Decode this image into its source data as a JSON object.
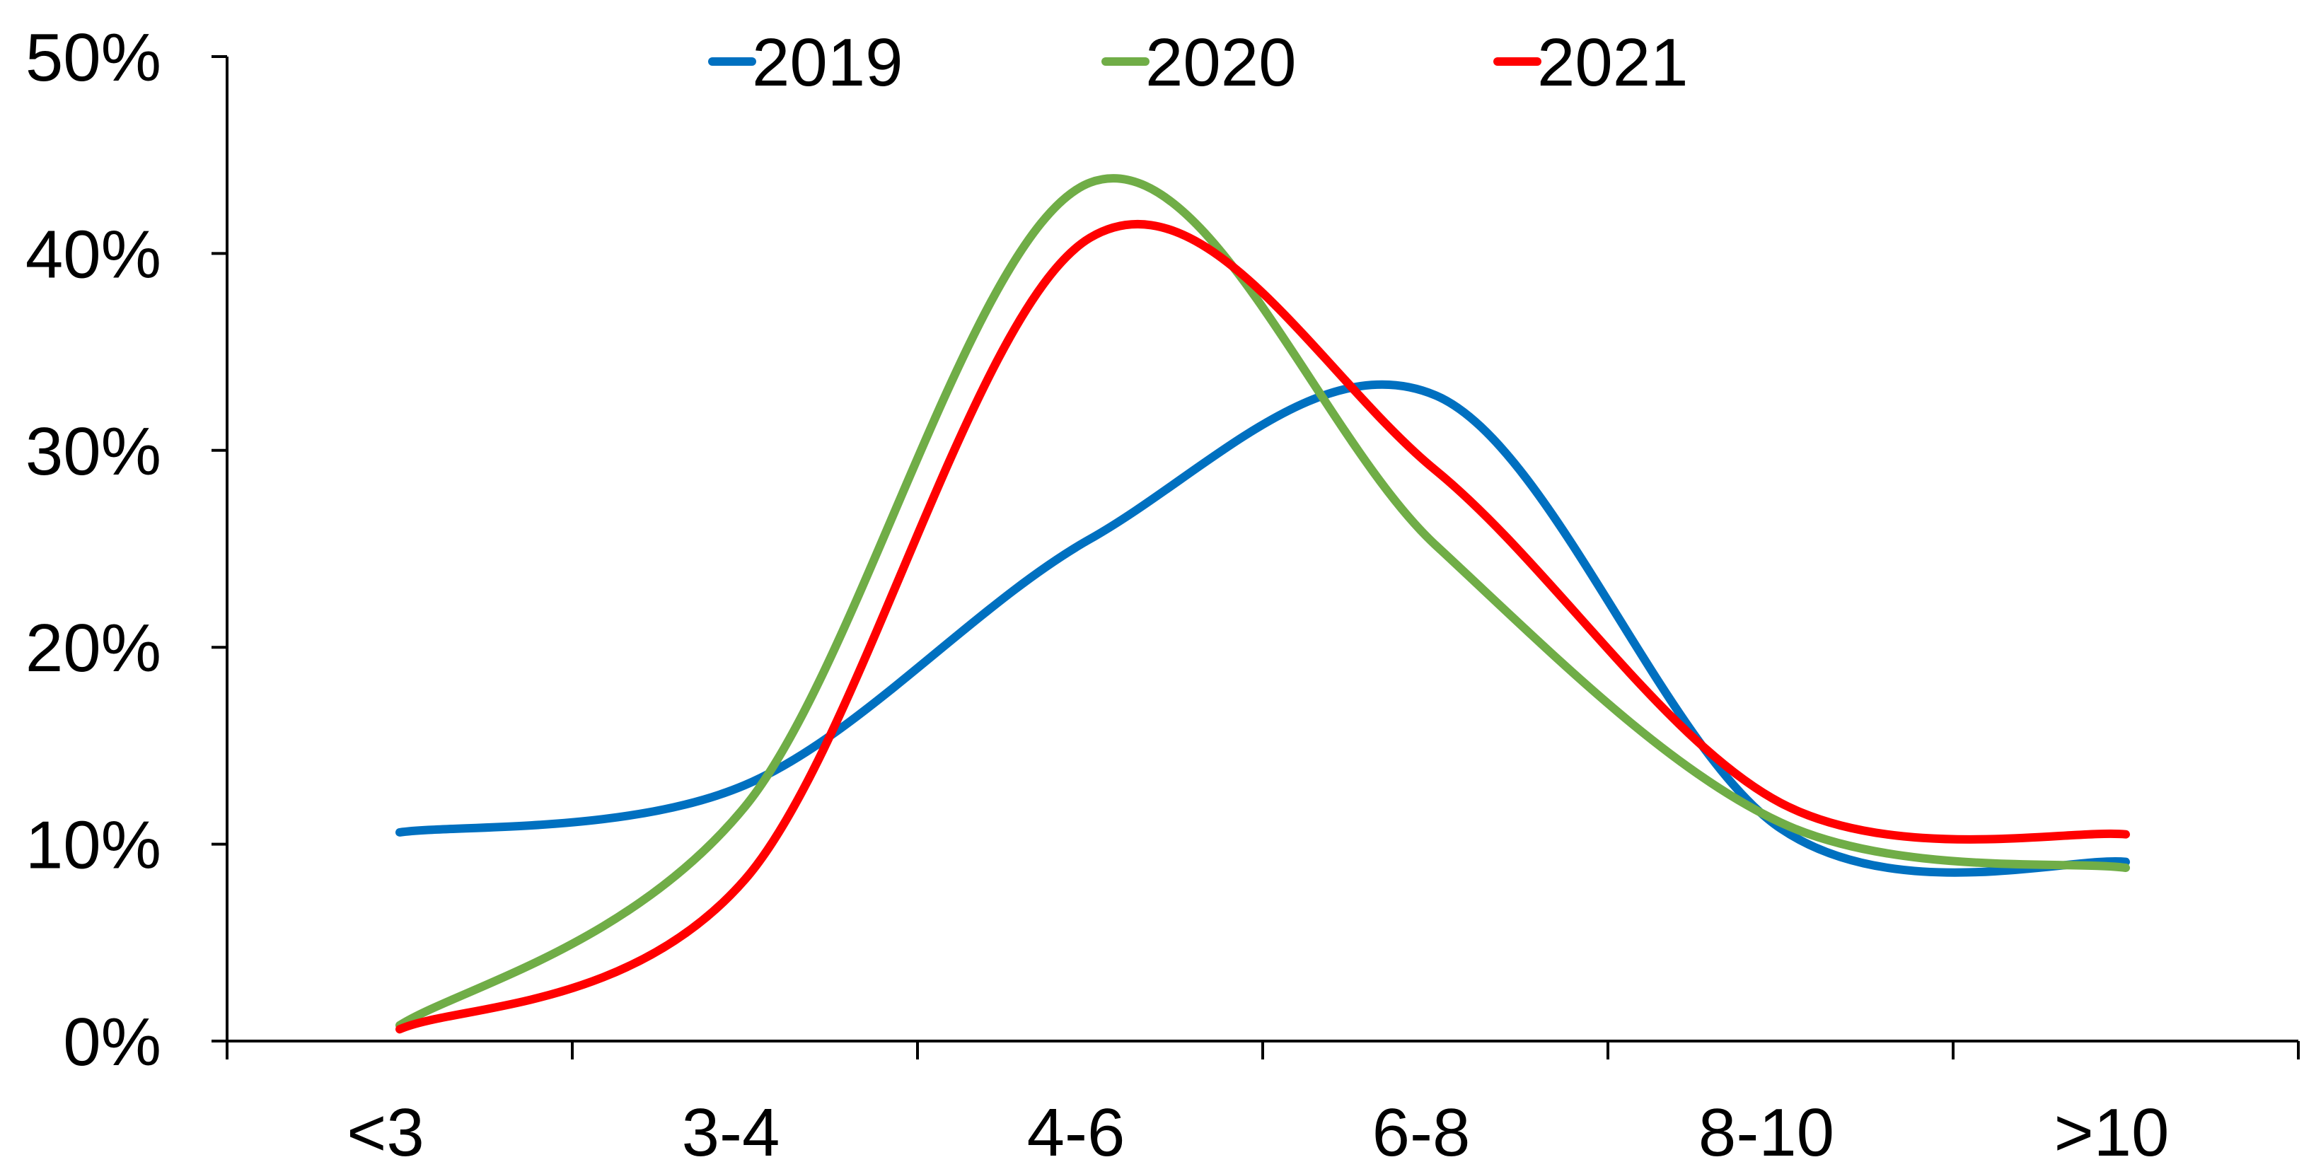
{
  "chart_data": {
    "type": "line",
    "smooth": true,
    "categories": [
      "<3",
      "3-4",
      "4-6",
      "6-8",
      "8-10",
      ">10"
    ],
    "series": [
      {
        "name": "2019",
        "color": "#0070C0",
        "values": [
          10.6,
          13.0,
          25.5,
          32.8,
          10.8,
          9.1
        ]
      },
      {
        "name": "2020",
        "color": "#70AD47",
        "values": [
          0.8,
          11.9,
          43.6,
          25.2,
          11.1,
          8.8
        ]
      },
      {
        "name": "2021",
        "color": "#FF0000",
        "values": [
          0.6,
          8.2,
          40.8,
          29.0,
          12.1,
          10.5
        ]
      }
    ],
    "y_ticks": [
      "0%",
      "10%",
      "20%",
      "30%",
      "40%",
      "50%"
    ],
    "ylim": [
      0,
      50
    ],
    "y_unit": "%",
    "grid": false,
    "legend_position": "top"
  }
}
